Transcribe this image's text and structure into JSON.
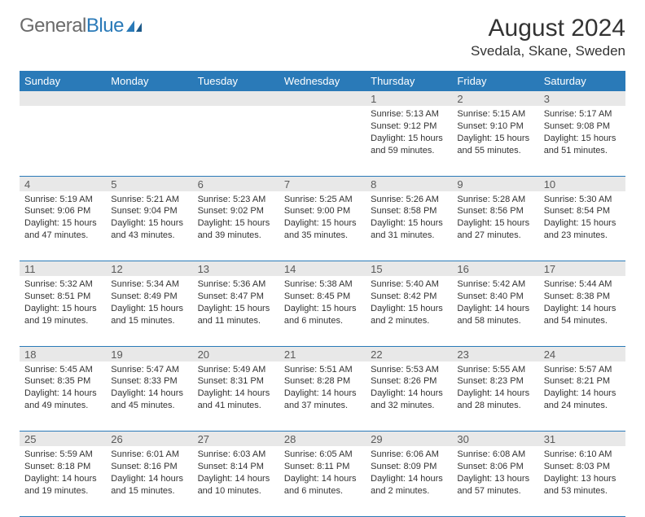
{
  "logo": {
    "text1": "General",
    "text2": "Blue"
  },
  "title": {
    "month": "August 2024",
    "location": "Svedala, Skane, Sweden"
  },
  "colors": {
    "header_bg": "#2a7ab8",
    "daynum_bg": "#e8e8e8",
    "text": "#333333"
  },
  "day_headers": [
    "Sunday",
    "Monday",
    "Tuesday",
    "Wednesday",
    "Thursday",
    "Friday",
    "Saturday"
  ],
  "weeks": [
    [
      null,
      null,
      null,
      null,
      {
        "n": "1",
        "sr": "5:13 AM",
        "ss": "9:12 PM",
        "dl": "15 hours and 59 minutes."
      },
      {
        "n": "2",
        "sr": "5:15 AM",
        "ss": "9:10 PM",
        "dl": "15 hours and 55 minutes."
      },
      {
        "n": "3",
        "sr": "5:17 AM",
        "ss": "9:08 PM",
        "dl": "15 hours and 51 minutes."
      }
    ],
    [
      {
        "n": "4",
        "sr": "5:19 AM",
        "ss": "9:06 PM",
        "dl": "15 hours and 47 minutes."
      },
      {
        "n": "5",
        "sr": "5:21 AM",
        "ss": "9:04 PM",
        "dl": "15 hours and 43 minutes."
      },
      {
        "n": "6",
        "sr": "5:23 AM",
        "ss": "9:02 PM",
        "dl": "15 hours and 39 minutes."
      },
      {
        "n": "7",
        "sr": "5:25 AM",
        "ss": "9:00 PM",
        "dl": "15 hours and 35 minutes."
      },
      {
        "n": "8",
        "sr": "5:26 AM",
        "ss": "8:58 PM",
        "dl": "15 hours and 31 minutes."
      },
      {
        "n": "9",
        "sr": "5:28 AM",
        "ss": "8:56 PM",
        "dl": "15 hours and 27 minutes."
      },
      {
        "n": "10",
        "sr": "5:30 AM",
        "ss": "8:54 PM",
        "dl": "15 hours and 23 minutes."
      }
    ],
    [
      {
        "n": "11",
        "sr": "5:32 AM",
        "ss": "8:51 PM",
        "dl": "15 hours and 19 minutes."
      },
      {
        "n": "12",
        "sr": "5:34 AM",
        "ss": "8:49 PM",
        "dl": "15 hours and 15 minutes."
      },
      {
        "n": "13",
        "sr": "5:36 AM",
        "ss": "8:47 PM",
        "dl": "15 hours and 11 minutes."
      },
      {
        "n": "14",
        "sr": "5:38 AM",
        "ss": "8:45 PM",
        "dl": "15 hours and 6 minutes."
      },
      {
        "n": "15",
        "sr": "5:40 AM",
        "ss": "8:42 PM",
        "dl": "15 hours and 2 minutes."
      },
      {
        "n": "16",
        "sr": "5:42 AM",
        "ss": "8:40 PM",
        "dl": "14 hours and 58 minutes."
      },
      {
        "n": "17",
        "sr": "5:44 AM",
        "ss": "8:38 PM",
        "dl": "14 hours and 54 minutes."
      }
    ],
    [
      {
        "n": "18",
        "sr": "5:45 AM",
        "ss": "8:35 PM",
        "dl": "14 hours and 49 minutes."
      },
      {
        "n": "19",
        "sr": "5:47 AM",
        "ss": "8:33 PM",
        "dl": "14 hours and 45 minutes."
      },
      {
        "n": "20",
        "sr": "5:49 AM",
        "ss": "8:31 PM",
        "dl": "14 hours and 41 minutes."
      },
      {
        "n": "21",
        "sr": "5:51 AM",
        "ss": "8:28 PM",
        "dl": "14 hours and 37 minutes."
      },
      {
        "n": "22",
        "sr": "5:53 AM",
        "ss": "8:26 PM",
        "dl": "14 hours and 32 minutes."
      },
      {
        "n": "23",
        "sr": "5:55 AM",
        "ss": "8:23 PM",
        "dl": "14 hours and 28 minutes."
      },
      {
        "n": "24",
        "sr": "5:57 AM",
        "ss": "8:21 PM",
        "dl": "14 hours and 24 minutes."
      }
    ],
    [
      {
        "n": "25",
        "sr": "5:59 AM",
        "ss": "8:18 PM",
        "dl": "14 hours and 19 minutes."
      },
      {
        "n": "26",
        "sr": "6:01 AM",
        "ss": "8:16 PM",
        "dl": "14 hours and 15 minutes."
      },
      {
        "n": "27",
        "sr": "6:03 AM",
        "ss": "8:14 PM",
        "dl": "14 hours and 10 minutes."
      },
      {
        "n": "28",
        "sr": "6:05 AM",
        "ss": "8:11 PM",
        "dl": "14 hours and 6 minutes."
      },
      {
        "n": "29",
        "sr": "6:06 AM",
        "ss": "8:09 PM",
        "dl": "14 hours and 2 minutes."
      },
      {
        "n": "30",
        "sr": "6:08 AM",
        "ss": "8:06 PM",
        "dl": "13 hours and 57 minutes."
      },
      {
        "n": "31",
        "sr": "6:10 AM",
        "ss": "8:03 PM",
        "dl": "13 hours and 53 minutes."
      }
    ]
  ],
  "labels": {
    "sunrise": "Sunrise: ",
    "sunset": "Sunset: ",
    "daylight": "Daylight: "
  }
}
